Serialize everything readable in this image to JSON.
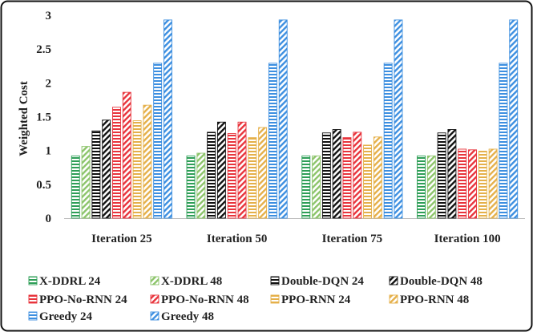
{
  "chart_data": {
    "type": "bar",
    "ylabel": "Weighted Cost",
    "ylim": [
      0,
      3
    ],
    "yticks": [
      "0",
      "0.5",
      "1",
      "1.5",
      "2",
      "2.5",
      "3"
    ],
    "ytick_values": [
      0,
      0.5,
      1,
      1.5,
      2,
      2.5,
      3
    ],
    "categories": [
      "Iteration 25",
      "Iteration 50",
      "Iteration 75",
      "Iteration 100"
    ],
    "grid": false,
    "legend_position": "bottom",
    "series": [
      {
        "name": "X-DDRL 24",
        "color": "#2e9e57",
        "pattern": "horizontal",
        "values": [
          0.92,
          0.92,
          0.92,
          0.92
        ]
      },
      {
        "name": "X-DDRL 48",
        "color": "#8cc46a",
        "pattern": "diagonal-down",
        "values": [
          1.06,
          0.96,
          0.92,
          0.92
        ]
      },
      {
        "name": "Double-DQN 24",
        "color": "#111111",
        "pattern": "horizontal",
        "values": [
          1.29,
          1.27,
          1.26,
          1.26
        ]
      },
      {
        "name": "Double-DQN 48",
        "color": "#111111",
        "pattern": "diagonal-down",
        "values": [
          1.45,
          1.42,
          1.31,
          1.31
        ]
      },
      {
        "name": "PPO-No-RNN 24",
        "color": "#e8343c",
        "pattern": "horizontal",
        "values": [
          1.64,
          1.25,
          1.19,
          1.02
        ]
      },
      {
        "name": "PPO-No-RNN 48",
        "color": "#e8343c",
        "pattern": "diagonal-down",
        "values": [
          1.86,
          1.42,
          1.27,
          1.01
        ]
      },
      {
        "name": "PPO-RNN 24",
        "color": "#e5b04a",
        "pattern": "horizontal",
        "values": [
          1.44,
          1.19,
          1.08,
          0.99
        ]
      },
      {
        "name": "PPO-RNN 48",
        "color": "#e5b04a",
        "pattern": "diagonal-down",
        "values": [
          1.67,
          1.34,
          1.2,
          1.02
        ]
      },
      {
        "name": "Greedy 24",
        "color": "#3d8fe0",
        "pattern": "horizontal",
        "values": [
          2.29,
          2.29,
          2.29,
          2.29
        ]
      },
      {
        "name": "Greedy 48",
        "color": "#3d8fe0",
        "pattern": "diagonal-down",
        "values": [
          2.93,
          2.93,
          2.93,
          2.93
        ]
      }
    ]
  }
}
